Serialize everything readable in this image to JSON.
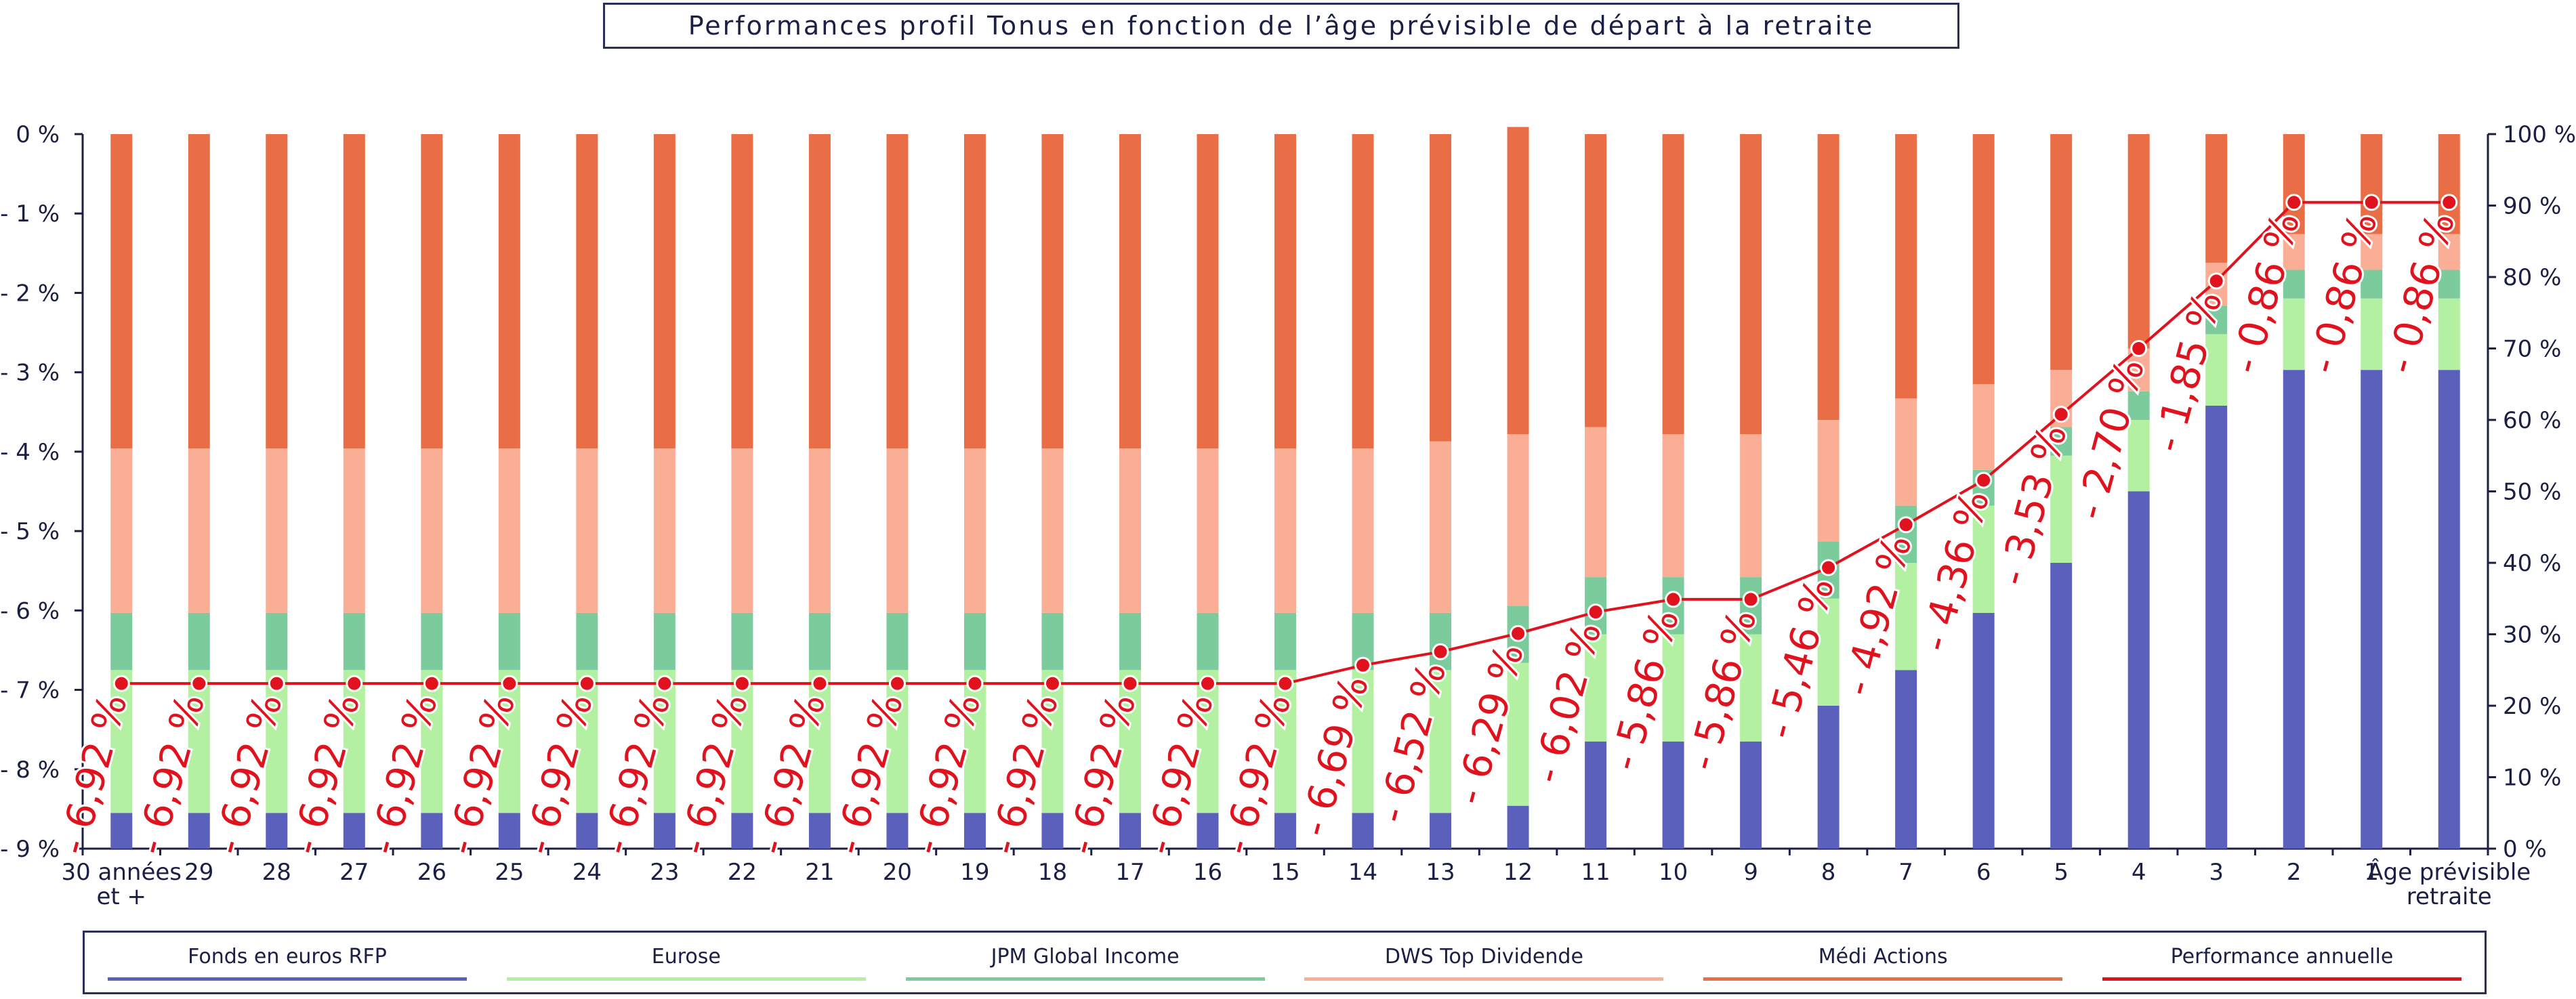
{
  "chart_data": {
    "type": "bar",
    "title": "Performances profil Tonus en fonction de l’âge prévisible de départ à la retraite",
    "categories": [
      "30 années et +",
      "29",
      "28",
      "27",
      "26",
      "25",
      "24",
      "23",
      "22",
      "21",
      "20",
      "19",
      "18",
      "17",
      "16",
      "15",
      "14",
      "13",
      "12",
      "11",
      "10",
      "9",
      "8",
      "7",
      "6",
      "5",
      "4",
      "3",
      "2",
      "1",
      "Âge prévisible retraite"
    ],
    "stacked": true,
    "y_left": {
      "ticks": [
        "0 %",
        "- 1 %",
        "- 2 %",
        "- 3 %",
        "- 4 %",
        "- 5 %",
        "- 6 %",
        "- 7 %",
        "- 8 %",
        "- 9 %"
      ],
      "range": [
        -9,
        0
      ]
    },
    "y_right": {
      "ticks": [
        "0 %",
        "10 %",
        "20 %",
        "30 %",
        "40 %",
        "50 %",
        "60 %",
        "70 %",
        "80 %",
        "90 %",
        "100 %"
      ],
      "range": [
        0,
        100
      ]
    },
    "series": [
      {
        "name": "Fonds en euros RFP",
        "color": "#5b60bd",
        "axis": "right",
        "values": [
          5,
          5,
          5,
          5,
          5,
          5,
          5,
          5,
          5,
          5,
          5,
          5,
          5,
          5,
          5,
          5,
          5,
          5,
          6,
          15,
          15,
          15,
          20,
          25,
          33,
          40,
          50,
          62,
          67,
          67,
          67
        ]
      },
      {
        "name": "Eurose",
        "color": "#b3f0a2",
        "axis": "right",
        "values": [
          20,
          20,
          20,
          20,
          20,
          20,
          20,
          20,
          20,
          20,
          20,
          20,
          20,
          20,
          20,
          20,
          20,
          20,
          20,
          15,
          15,
          15,
          15,
          15,
          15,
          15,
          10,
          10,
          10,
          10,
          10
        ]
      },
      {
        "name": "JPM Global Income",
        "color": "#7bcb9c",
        "axis": "right",
        "values": [
          8,
          8,
          8,
          8,
          8,
          8,
          8,
          8,
          8,
          8,
          8,
          8,
          8,
          8,
          8,
          8,
          8,
          8,
          8,
          8,
          8,
          8,
          8,
          8,
          5,
          4,
          4,
          4,
          4,
          4,
          4
        ]
      },
      {
        "name": "DWS Top Dividende",
        "color": "#fbae96",
        "axis": "right",
        "values": [
          23,
          23,
          23,
          23,
          23,
          23,
          23,
          23,
          23,
          23,
          23,
          23,
          23,
          23,
          23,
          23,
          23,
          24,
          24,
          21,
          20,
          20,
          17,
          15,
          12,
          8,
          6,
          6,
          5,
          5,
          5
        ]
      },
      {
        "name": "Médi Actions",
        "color": "#ea6e45",
        "axis": "right",
        "values": [
          44,
          44,
          44,
          44,
          44,
          44,
          44,
          44,
          44,
          44,
          44,
          44,
          44,
          44,
          44,
          44,
          44,
          43,
          43,
          41,
          42,
          42,
          40,
          37,
          35,
          33,
          30,
          18,
          14,
          14,
          14
        ]
      },
      {
        "name": "Performance annuelle",
        "color": "#e0121e",
        "type": "line",
        "axis": "left",
        "values": [
          -6.92,
          -6.92,
          -6.92,
          -6.92,
          -6.92,
          -6.92,
          -6.92,
          -6.92,
          -6.92,
          -6.92,
          -6.92,
          -6.92,
          -6.92,
          -6.92,
          -6.92,
          -6.92,
          -6.69,
          -6.52,
          -6.29,
          -6.02,
          -5.86,
          -5.86,
          -5.46,
          -4.92,
          -4.36,
          -3.53,
          -2.7,
          -1.85,
          -0.86,
          -0.86,
          -0.86
        ],
        "labels": [
          "- 6,92 %",
          "- 6,92 %",
          "- 6,92 %",
          "- 6,92 %",
          "- 6,92 %",
          "- 6,92 %",
          "- 6,92 %",
          "- 6,92 %",
          "- 6,92 %",
          "- 6,92 %",
          "- 6,92 %",
          "- 6,92 %",
          "- 6,92 %",
          "- 6,92 %",
          "- 6,92 %",
          "- 6,92 %",
          "- 6,69 %",
          "- 6,52 %",
          "- 6,29 %",
          "- 6,02 %",
          "- 5,86 %",
          "- 5,86 %",
          "- 5,46 %",
          "- 4,92 %",
          "- 4,36 %",
          "- 3,53 %",
          "- 2,70 %",
          "- 1,85 %",
          "- 0,86 %",
          "- 0,86 %",
          "- 0,86 %"
        ]
      }
    ],
    "legend_position": "bottom",
    "grid": false
  }
}
